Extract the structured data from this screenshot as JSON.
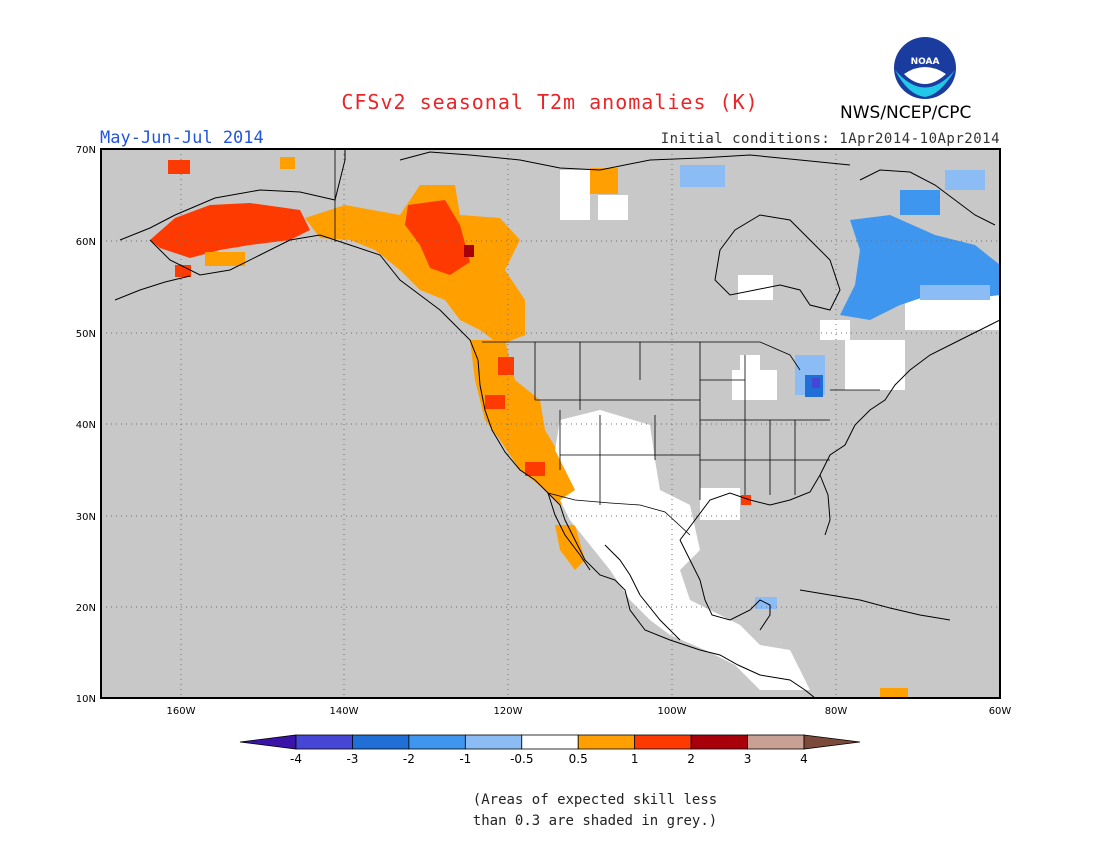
{
  "header": {
    "title": "CFSv2 seasonal T2m anomalies (K)",
    "season": "May-Jun-Jul 2014",
    "initial_conditions": "Initial conditions: 1Apr2014-10Apr2014",
    "organization": "NWS/NCEP/CPC",
    "logo_text": "NOAA"
  },
  "map": {
    "lon_range": [
      -172,
      -60
    ],
    "lat_range": [
      10,
      70
    ],
    "lon_ticks": [
      "160W",
      "140W",
      "120W",
      "100W",
      "80W",
      "60W"
    ],
    "lat_ticks": [
      "70N",
      "60N",
      "50N",
      "40N",
      "30N",
      "20N",
      "10N"
    ],
    "grid": "dotted",
    "background_color": "#c8c8c8"
  },
  "colorbar": {
    "labels": [
      "-4",
      "-3",
      "-2",
      "-1",
      "-0.5",
      "0.5",
      "1",
      "2",
      "3",
      "4"
    ],
    "colors": [
      "#3a14a8",
      "#4646d6",
      "#1f6fd6",
      "#3f96ee",
      "#8cbcf4",
      "#ffffff",
      "#ff9f00",
      "#ff3a00",
      "#a8000a",
      "#c8a094",
      "#7b4a3a"
    ]
  },
  "note": {
    "line1": "(Areas of expected skill less",
    "line2": "than 0.3 are shaded in grey.)"
  }
}
